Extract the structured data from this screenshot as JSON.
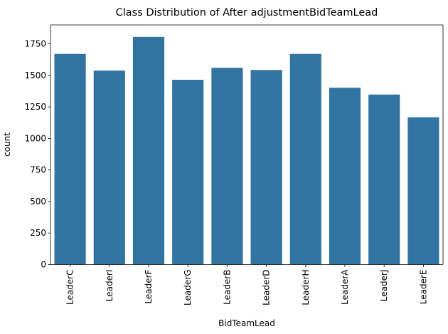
{
  "chart_data": {
    "type": "bar",
    "title": "Class Distribution of After adjustmentBidTeamLead",
    "xlabel": "BidTeamLead",
    "ylabel": "count",
    "categories": [
      "LeaderC",
      "LeaderI",
      "LeaderF",
      "LeaderG",
      "LeaderB",
      "LeaderD",
      "LeaderH",
      "LeaderA",
      "LeaderJ",
      "LeaderE"
    ],
    "values": [
      1670,
      1538,
      1805,
      1465,
      1560,
      1543,
      1670,
      1402,
      1348,
      1168
    ],
    "ylim": [
      0,
      1900
    ],
    "yticks": [
      0,
      250,
      500,
      750,
      1000,
      1250,
      1500,
      1750
    ],
    "bar_color": "#3274a1",
    "grid": false,
    "legend": "none"
  }
}
